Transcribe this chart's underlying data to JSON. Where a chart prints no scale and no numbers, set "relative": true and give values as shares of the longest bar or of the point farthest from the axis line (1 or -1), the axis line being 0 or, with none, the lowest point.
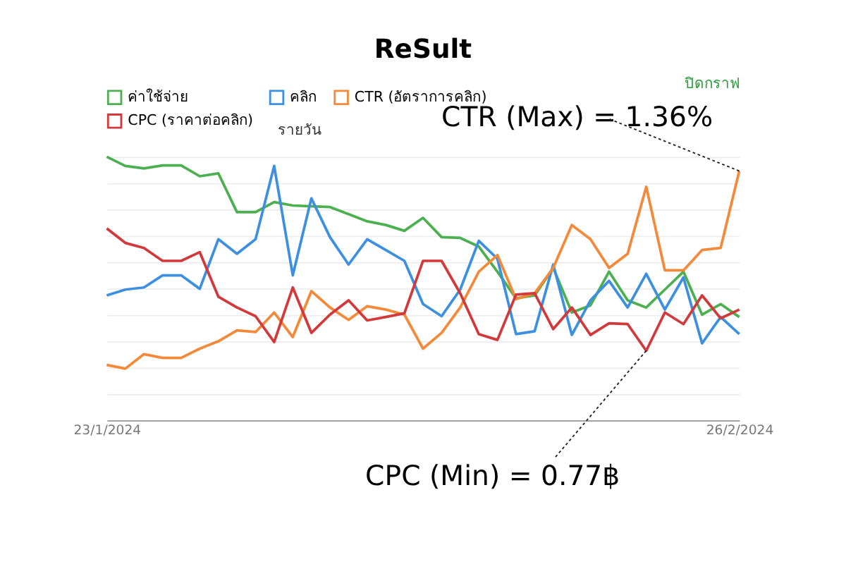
{
  "chart_data": {
    "type": "line",
    "title": "ReSult",
    "relative": true,
    "legend": "top left",
    "grid": "y",
    "marker": "none",
    "line_style": "solid",
    "x": [
      "2024-01-23",
      "2024-01-24",
      "2024-01-25",
      "2024-01-26",
      "2024-01-27",
      "2024-01-28",
      "2024-01-29",
      "2024-01-30",
      "2024-01-31",
      "2024-02-01",
      "2024-02-02",
      "2024-02-03",
      "2024-02-04",
      "2024-02-05",
      "2024-02-06",
      "2024-02-07",
      "2024-02-08",
      "2024-02-09",
      "2024-02-10",
      "2024-02-11",
      "2024-02-12",
      "2024-02-13",
      "2024-02-14",
      "2024-02-15",
      "2024-02-16",
      "2024-02-17",
      "2024-02-18",
      "2024-02-19",
      "2024-02-20",
      "2024-02-21",
      "2024-02-22",
      "2024-02-23",
      "2024-02-24",
      "2024-02-25",
      "2024-02-26"
    ],
    "xlim": [
      "2024-01-23",
      "2024-02-26"
    ],
    "xticks": [
      {
        "value": "2024-01-23",
        "label": "23/1/2024"
      },
      {
        "value": "2024-02-26",
        "label": "26/2/2024"
      }
    ],
    "series": [
      {
        "name": "ค่าใช้จ่าย",
        "color": "#4caf50",
        "values": [
          1.0,
          0.965,
          0.956,
          0.967,
          0.967,
          0.926,
          0.937,
          0.79,
          0.79,
          0.828,
          0.815,
          0.812,
          0.809,
          0.782,
          0.755,
          0.741,
          0.719,
          0.768,
          0.695,
          0.692,
          0.659,
          0.564,
          0.463,
          0.474,
          0.578,
          0.409,
          0.436,
          0.564,
          0.455,
          0.428,
          0.496,
          0.564,
          0.401,
          0.441,
          0.392
        ]
      },
      {
        "name": "คลิก",
        "color": "#3d8fe0",
        "values": [
          0.474,
          0.496,
          0.504,
          0.55,
          0.55,
          0.499,
          0.687,
          0.632,
          0.687,
          0.965,
          0.55,
          0.842,
          0.695,
          0.591,
          0.687,
          0.646,
          0.605,
          0.441,
          0.395,
          0.496,
          0.681,
          0.613,
          0.327,
          0.338,
          0.591,
          0.324,
          0.455,
          0.529,
          0.428,
          0.556,
          0.42,
          0.542,
          0.292,
          0.392,
          0.327
        ]
      },
      {
        "name": "CTR (อัตราการคลิก)",
        "color": "#f5893a",
        "values": [
          0.21,
          0.196,
          0.251,
          0.237,
          0.237,
          0.272,
          0.3,
          0.341,
          0.335,
          0.409,
          0.316,
          0.49,
          0.428,
          0.381,
          0.433,
          0.42,
          0.401,
          0.272,
          0.332,
          0.428,
          0.564,
          0.627,
          0.46,
          0.482,
          0.578,
          0.741,
          0.687,
          0.578,
          0.632,
          0.886,
          0.569,
          0.569,
          0.646,
          0.654,
          0.946
        ]
      },
      {
        "name": "CPC (ราคาต่อคลิก)",
        "color": "#d2393a",
        "values": [
          0.728,
          0.673,
          0.654,
          0.605,
          0.605,
          0.638,
          0.469,
          0.428,
          0.395,
          0.297,
          0.504,
          0.332,
          0.401,
          0.455,
          0.379,
          0.392,
          0.406,
          0.605,
          0.605,
          0.482,
          0.327,
          0.305,
          0.477,
          0.482,
          0.346,
          0.428,
          0.324,
          0.368,
          0.365,
          0.264,
          0.409,
          0.365,
          0.474,
          0.387,
          0.42
        ]
      }
    ],
    "annotations": [
      {
        "text": "CTR (Max) = 1.36%",
        "x": "2024-02-26",
        "y": 0.946
      },
      {
        "text": "CPC (Min) = 0.77฿",
        "x": "2024-02-21",
        "y": 0.264
      },
      "รายวัน",
      "ปิดกราฟ"
    ]
  }
}
